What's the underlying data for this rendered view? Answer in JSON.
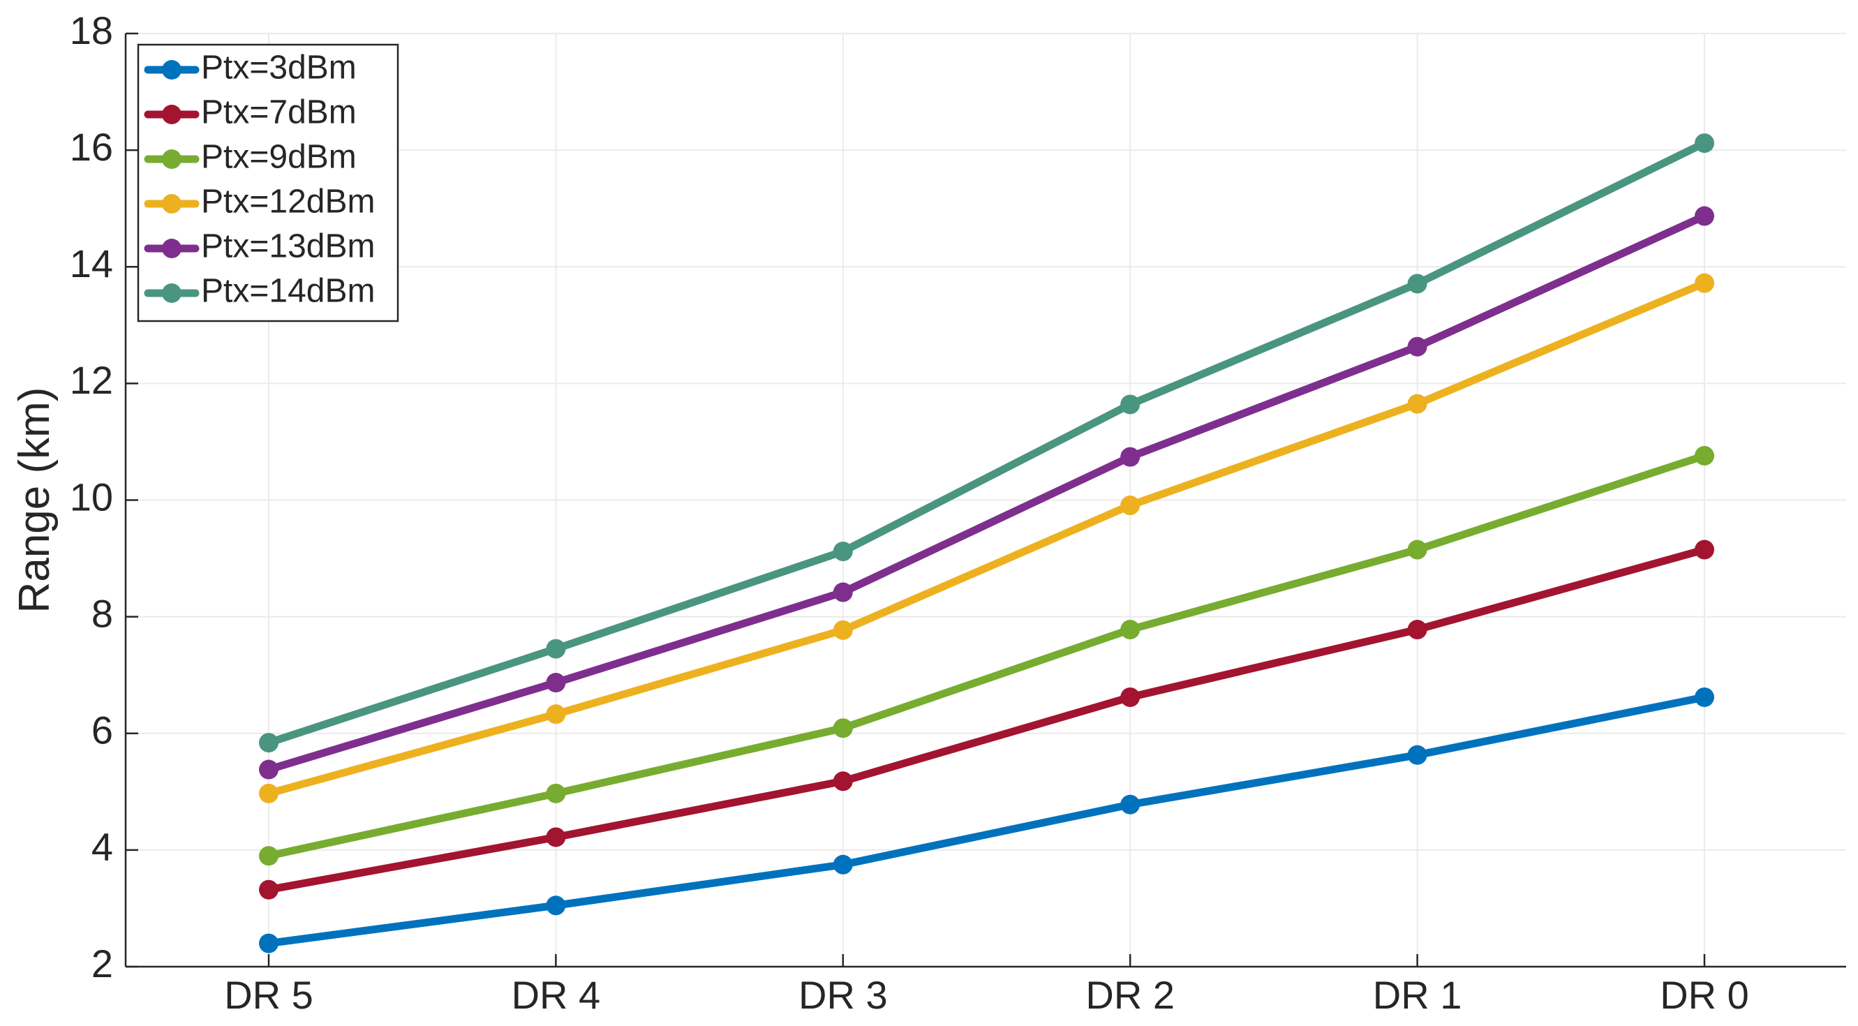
{
  "chart_data": {
    "type": "line",
    "title": "",
    "xlabel": "",
    "ylabel": "Range (km)",
    "categories": [
      "DR 5",
      "DR 4",
      "DR 3",
      "DR 2",
      "DR 1",
      "DR 0"
    ],
    "ylim": [
      2,
      18
    ],
    "yticks": [
      2,
      4,
      6,
      8,
      10,
      12,
      14,
      16,
      18
    ],
    "yticklabels": [
      "2",
      "4",
      "6",
      "8",
      "10",
      "12",
      "14",
      "16",
      "18"
    ],
    "grid": true,
    "legend_position": "top-left",
    "series": [
      {
        "name": "Ptx=3dBm",
        "color": "#0072BD",
        "values": [
          2.4,
          3.05,
          3.75,
          4.78,
          5.63,
          6.62
        ]
      },
      {
        "name": "Ptx=7dBm",
        "color": "#A2142F",
        "values": [
          3.32,
          4.22,
          5.18,
          6.62,
          7.78,
          9.15
        ]
      },
      {
        "name": "Ptx=9dBm",
        "color": "#77AC30",
        "values": [
          3.9,
          4.97,
          6.09,
          7.78,
          9.15,
          10.76
        ]
      },
      {
        "name": "Ptx=12dBm",
        "color": "#EDB120",
        "values": [
          4.97,
          6.33,
          7.77,
          9.91,
          11.65,
          13.72
        ]
      },
      {
        "name": "Ptx=13dBm",
        "color": "#7E2F8E",
        "values": [
          5.38,
          6.87,
          8.42,
          10.74,
          12.63,
          14.87
        ]
      },
      {
        "name": "Ptx=14dBm",
        "color": "#4A9580",
        "values": [
          5.84,
          7.45,
          9.12,
          11.64,
          13.71,
          16.12
        ]
      }
    ]
  }
}
